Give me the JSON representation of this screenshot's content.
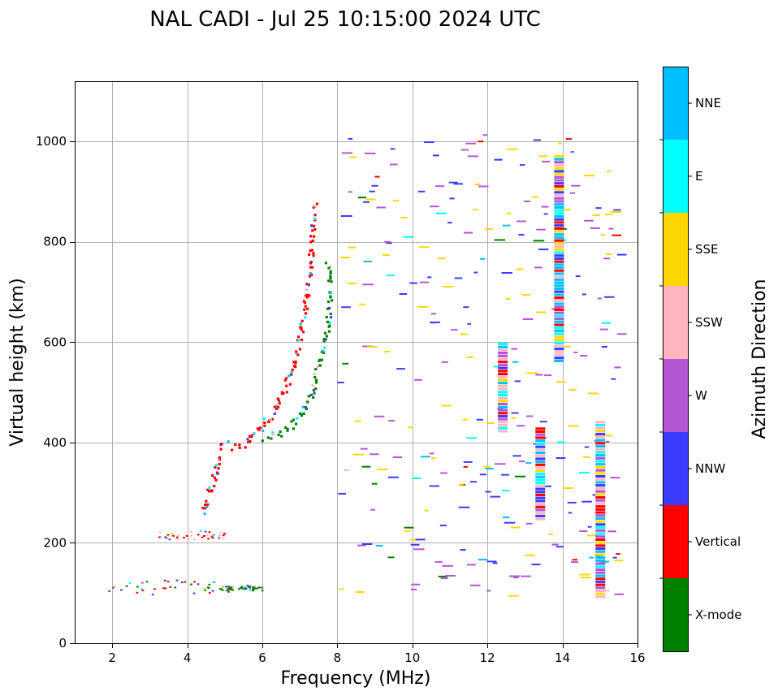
{
  "chart_data": {
    "type": "scatter",
    "title": "NAL CADI - Jul 25 10:15:00 2024 UTC",
    "xlabel": "Frequency (MHz)",
    "ylabel": "Virtual height (km)",
    "xlim": [
      1,
      16
    ],
    "ylim": [
      0,
      1120
    ],
    "xticks": [
      2,
      4,
      6,
      8,
      10,
      12,
      14,
      16
    ],
    "yticks": [
      0,
      200,
      400,
      600,
      800,
      1000
    ],
    "grid": true,
    "colorbar": {
      "title": "Azimuth Direction",
      "position": "right",
      "categories": [
        {
          "name": "X-mode",
          "color": "#008000"
        },
        {
          "name": "Vertical",
          "color": "#ff0000"
        },
        {
          "name": "NNW",
          "color": "#3c3cff"
        },
        {
          "name": "W",
          "color": "#b455d4"
        },
        {
          "name": "SSW",
          "color": "#ffb6c1"
        },
        {
          "name": "SSE",
          "color": "#ffd700"
        },
        {
          "name": "E",
          "color": "#00ffff"
        },
        {
          "name": "NNE",
          "color": "#00bfff"
        }
      ]
    },
    "traces": [
      {
        "name": "E-layer echoes",
        "freq_range": [
          1.5,
          6.0
        ],
        "height_range": [
          95,
          125
        ],
        "dominant": [
          "Vertical",
          "NNW",
          "X-mode"
        ]
      },
      {
        "name": "E-layer X-mode",
        "freq_range": [
          4.8,
          6.0
        ],
        "height_range": [
          103,
          112
        ],
        "dominant": [
          "X-mode"
        ]
      },
      {
        "name": "Es sporadic",
        "freq_range": [
          3.2,
          5.0
        ],
        "height_range": [
          205,
          222
        ],
        "dominant": [
          "Vertical",
          "SSW"
        ]
      },
      {
        "name": "F-layer O trace",
        "points": [
          [
            4.4,
            260
          ],
          [
            4.7,
            330
          ],
          [
            4.9,
            390
          ],
          [
            5.5,
            390
          ],
          [
            6.3,
            460
          ],
          [
            6.8,
            540
          ],
          [
            7.0,
            620
          ],
          [
            7.2,
            700
          ],
          [
            7.3,
            800
          ],
          [
            7.4,
            880
          ]
        ],
        "dominant": [
          "Vertical"
        ]
      },
      {
        "name": "F-layer X trace",
        "points": [
          [
            6.0,
            405
          ],
          [
            6.6,
            420
          ],
          [
            7.0,
            450
          ],
          [
            7.3,
            500
          ],
          [
            7.5,
            560
          ],
          [
            7.7,
            620
          ],
          [
            7.8,
            680
          ],
          [
            7.7,
            760
          ]
        ],
        "dominant": [
          "X-mode"
        ]
      },
      {
        "name": "Scattered echoes",
        "freq_range": [
          8.0,
          15.5
        ],
        "height_range": [
          90,
          1015
        ],
        "dominant": [
          "SSE",
          "W",
          "NNW"
        ]
      }
    ]
  }
}
